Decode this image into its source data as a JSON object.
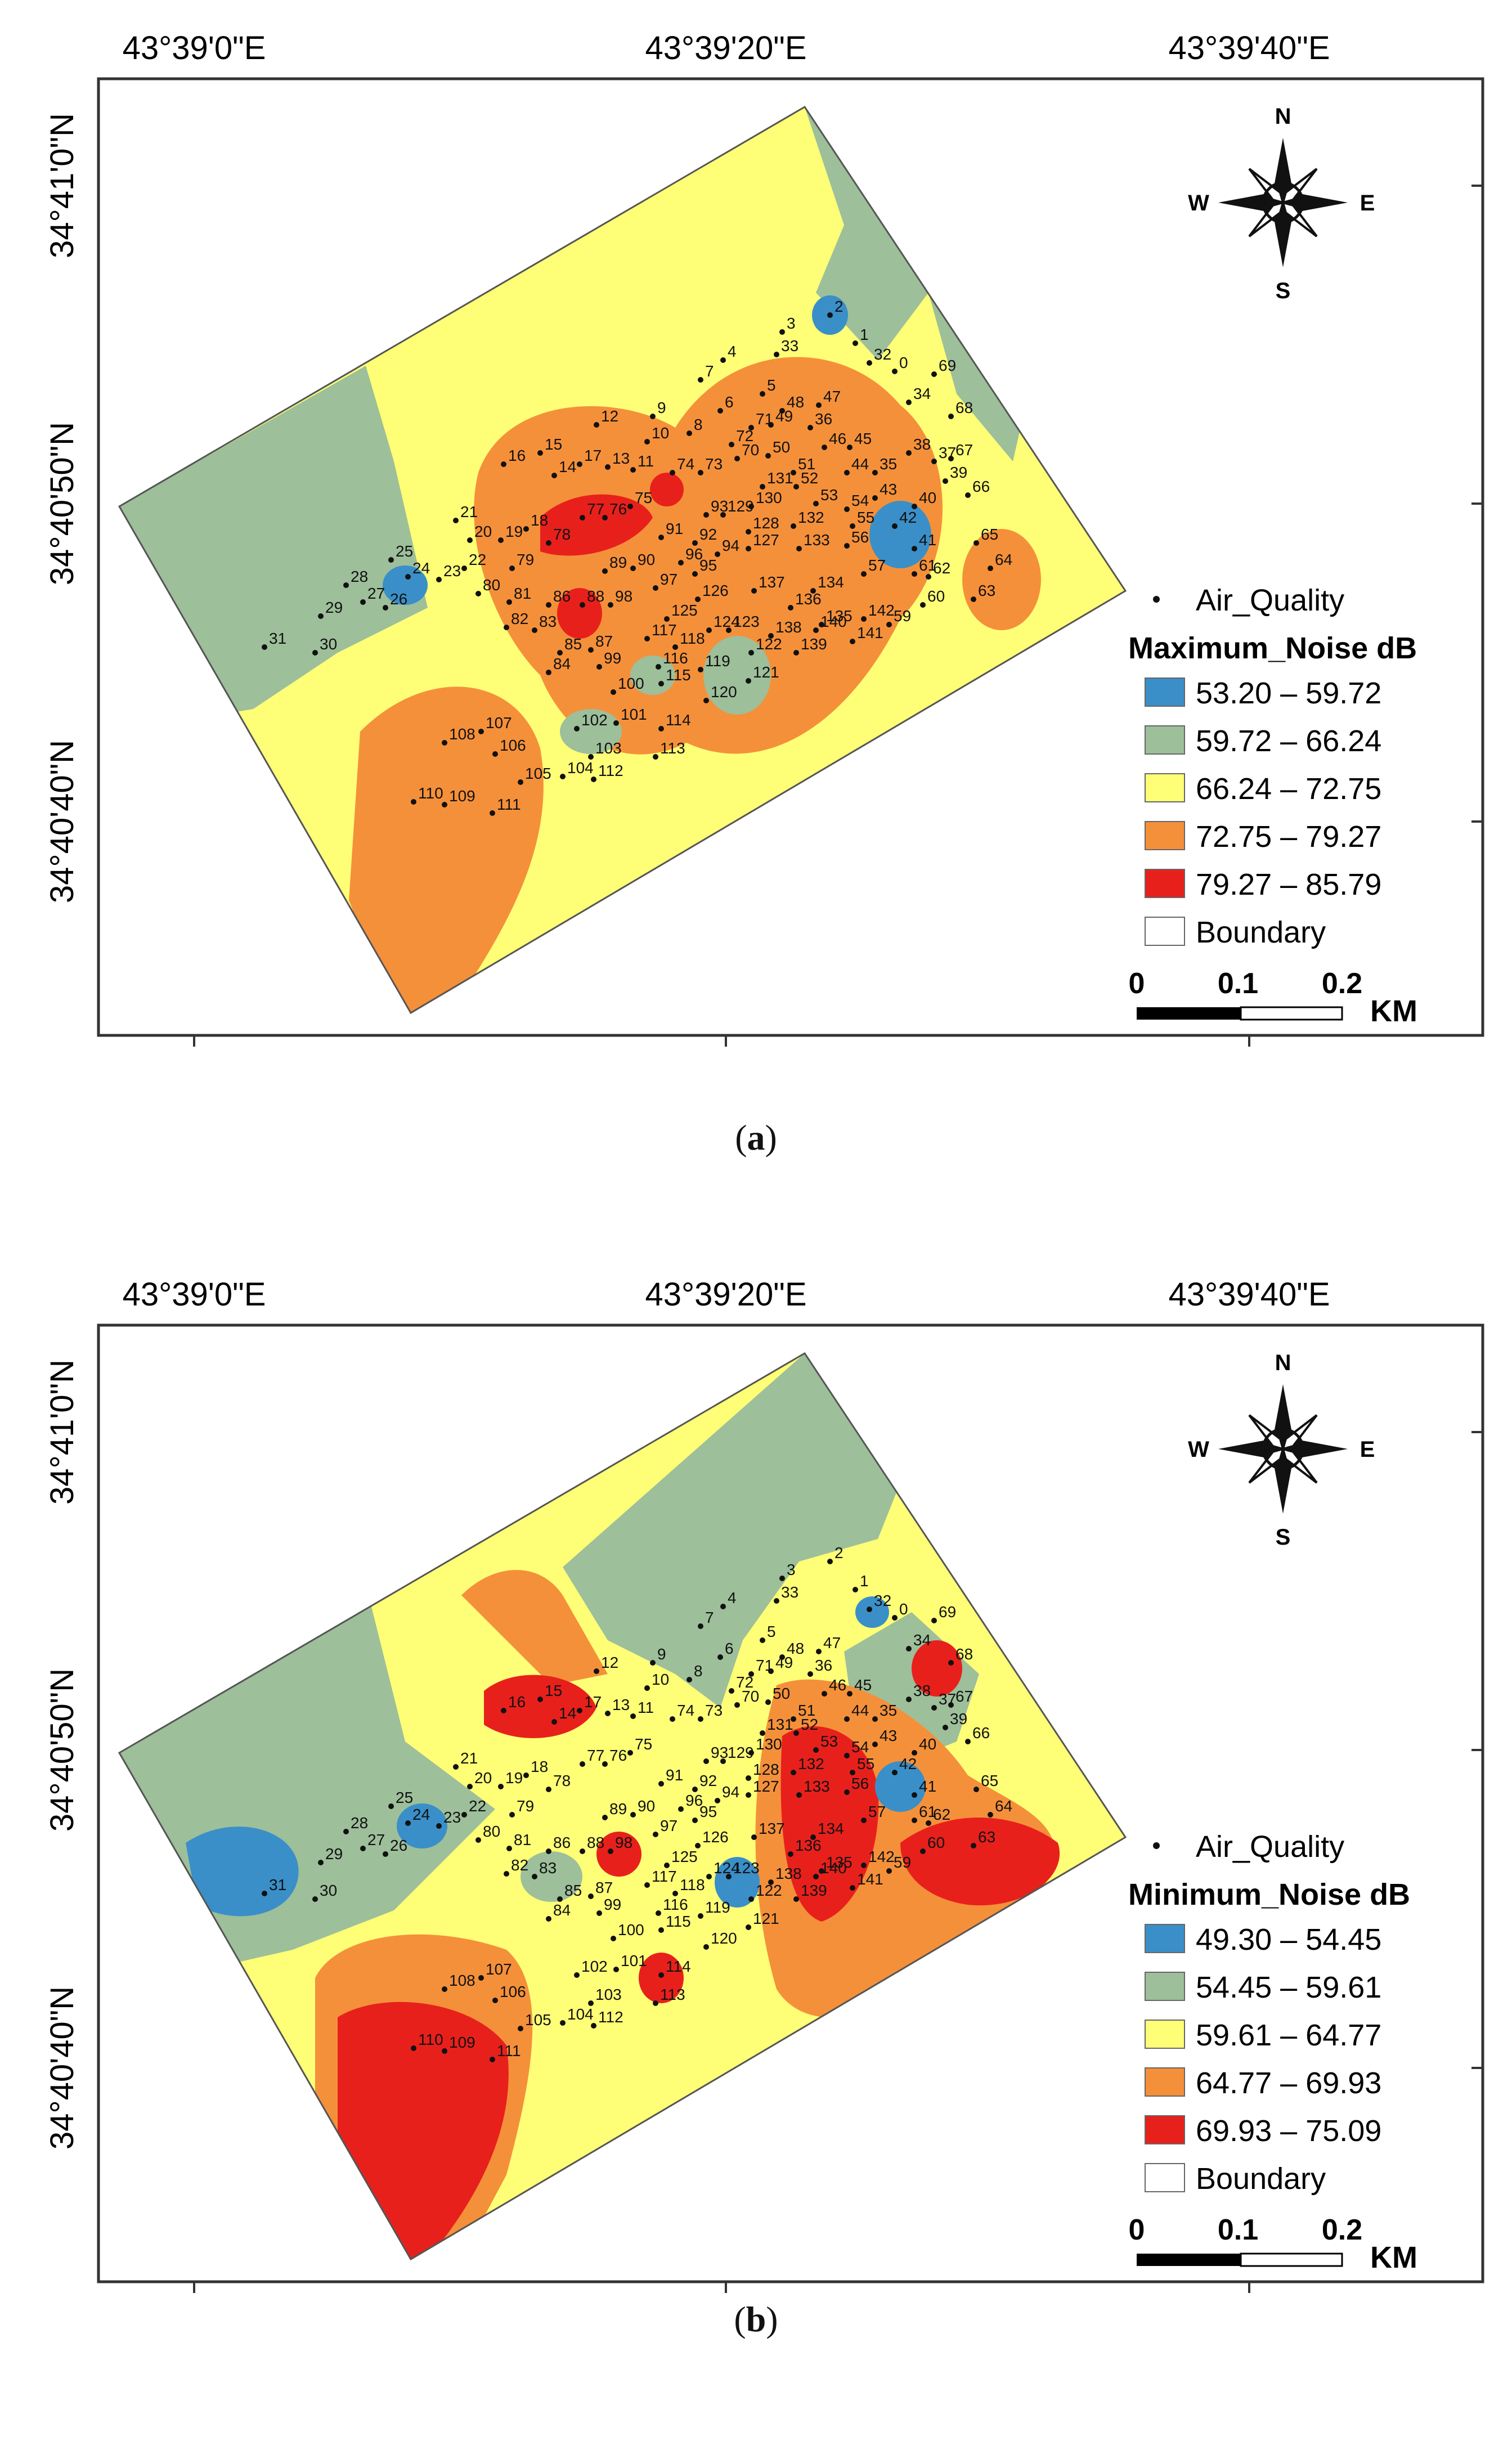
{
  "panels": [
    {
      "id": "a",
      "caption_letter": "a",
      "legend_title": "Maximum_Noise dB",
      "point_legend_label": "Air_Quality",
      "classes": [
        {
          "label": "53.20 – 59.72",
          "color": "#3a8fc8"
        },
        {
          "label": "59.72 – 66.24",
          "color": "#9dbf9a"
        },
        {
          "label": "66.24 – 72.75",
          "color": "#ffff77"
        },
        {
          "label": "72.75 – 79.27",
          "color": "#f5903a"
        },
        {
          "label": "79.27 – 85.79",
          "color": "#e8201c"
        }
      ],
      "boundary_label": "Boundary",
      "background_class": "66.24 – 72.75"
    },
    {
      "id": "b",
      "caption_letter": "b",
      "legend_title": "Minimum_Noise dB",
      "point_legend_label": "Air_Quality",
      "classes": [
        {
          "label": "49.30 – 54.45",
          "color": "#3a8fc8"
        },
        {
          "label": "54.45 – 59.61",
          "color": "#9dbf9a"
        },
        {
          "label": "59.61 – 64.77",
          "color": "#ffff77"
        },
        {
          "label": "64.77 – 69.93",
          "color": "#f5903a"
        },
        {
          "label": "69.93 – 75.09",
          "color": "#e8201c"
        }
      ],
      "boundary_label": "Boundary",
      "background_class": "59.61 – 64.77"
    }
  ],
  "axes": {
    "lon_labels": [
      "43°39'0\"E",
      "43°39'20\"E",
      "43°39'40\"E"
    ],
    "lat_labels": [
      "34°41'0\"N",
      "34°40'50\"N",
      "34°40'40\"N"
    ]
  },
  "compass": {
    "n": "N",
    "s": "S",
    "e": "E",
    "w": "W"
  },
  "scale_bar": {
    "labels": [
      "0",
      "0.1",
      "0.2"
    ],
    "unit": "KM"
  },
  "sample_points": [
    "0",
    "1",
    "2",
    "3",
    "4",
    "5",
    "6",
    "7",
    "8",
    "9",
    "10",
    "11",
    "12",
    "13",
    "14",
    "15",
    "16",
    "17",
    "18",
    "19",
    "20",
    "21",
    "22",
    "23",
    "24",
    "25",
    "26",
    "27",
    "28",
    "29",
    "30",
    "31",
    "32",
    "33",
    "34",
    "35",
    "36",
    "37",
    "38",
    "39",
    "40",
    "41",
    "42",
    "43",
    "44",
    "45",
    "46",
    "47",
    "48",
    "49",
    "50",
    "51",
    "52",
    "53",
    "54",
    "55",
    "56",
    "57",
    "59",
    "60",
    "61",
    "62",
    "63",
    "64",
    "65",
    "66",
    "67",
    "68",
    "69",
    "70",
    "71",
    "72",
    "73",
    "74",
    "75",
    "76",
    "77",
    "78",
    "79",
    "80",
    "81",
    "82",
    "83",
    "84",
    "85",
    "86",
    "87",
    "88",
    "89",
    "90",
    "91",
    "92",
    "93",
    "94",
    "95",
    "96",
    "97",
    "98",
    "99",
    "100",
    "101",
    "102",
    "103",
    "104",
    "105",
    "106",
    "107",
    "108",
    "109",
    "110",
    "111",
    "112",
    "113",
    "114",
    "115",
    "116",
    "117",
    "118",
    "119",
    "120",
    "121",
    "122",
    "123",
    "124",
    "125",
    "126",
    "127",
    "128",
    "129",
    "130",
    "131",
    "132",
    "133",
    "134",
    "135",
    "136",
    "137",
    "138",
    "139",
    "140",
    "141",
    "142"
  ]
}
